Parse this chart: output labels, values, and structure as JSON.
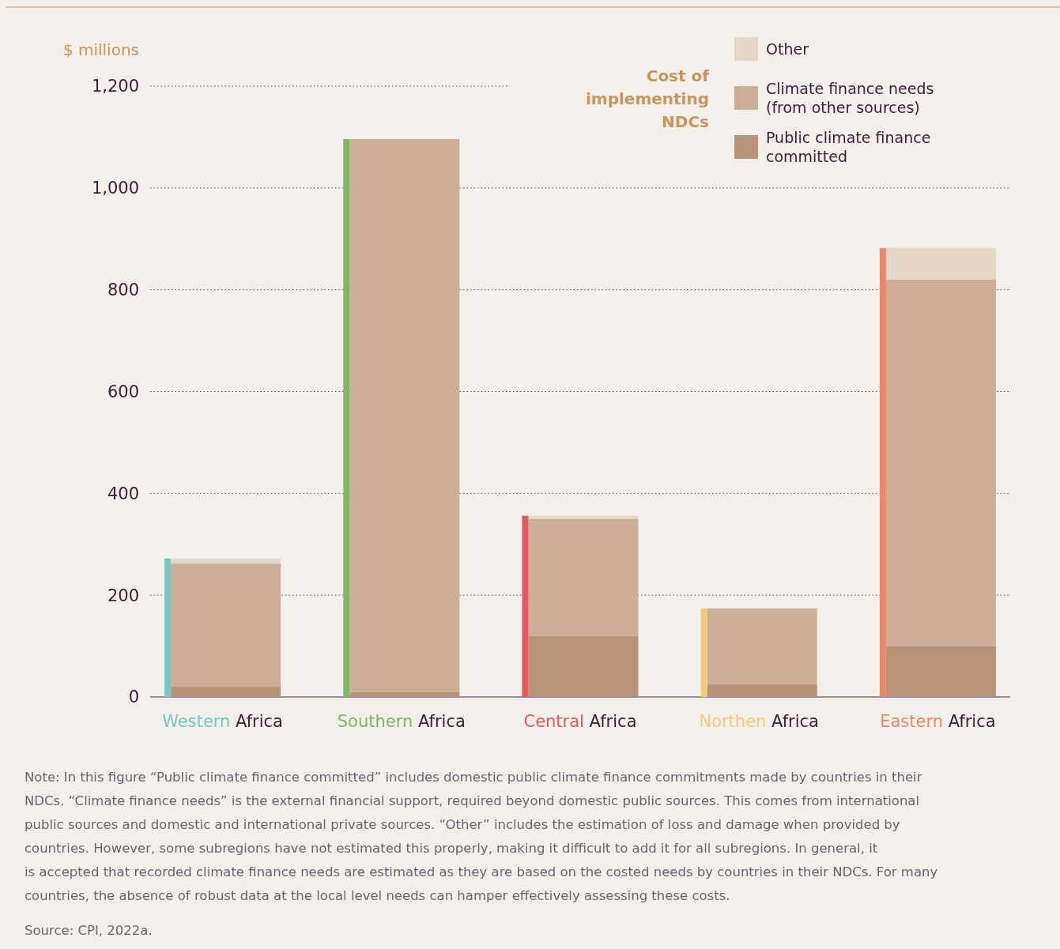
{
  "chart_data": [
    {
      "type": "bar",
      "stacked": true,
      "categories": [
        "Western Africa",
        "Southern Africa",
        "Central Africa",
        "Northen Africa",
        "Eastern Africa"
      ],
      "series": [
        {
          "name": "Public climate finance committed",
          "color": "#b79377",
          "values": [
            20,
            10,
            120,
            25,
            100
          ]
        },
        {
          "name": "Climate finance needs (from other sources)",
          "color": "#cdae99",
          "values": [
            242,
            1086,
            230,
            149,
            720
          ]
        },
        {
          "name": "Other",
          "color": "#e4d7c8",
          "values": [
            10,
            0,
            6,
            0,
            62
          ]
        }
      ],
      "ylabel": "$ millions",
      "legend_title": "Cost of implementing NDCs",
      "ylim": [
        0,
        1200
      ],
      "yticks": [
        0,
        200,
        400,
        600,
        800,
        {
          "value": 1000,
          "label": "1,000"
        },
        {
          "value": 1200,
          "label": "1,200"
        }
      ],
      "grid": "y",
      "legend": "top right",
      "annotations": [
        "Note: In this figure “Public climate finance committed” includes domestic public climate finance commitments made by countries in their NDCs. “Climate finance needs” is the external financial support, required beyond domestic public sources. This comes from international public sources and domestic and international private sources. “Other” includes the estimation of loss and damage when provided by countries. However, some subregions have not estimated this properly, making it difficult to add it for all subregions. In general, it is accepted that recorded climate finance needs are estimated as they are based on the costed needs by countries in their NDCs. For many countries, the absence of robust data at the local level needs can hamper effectively assessing these costs.",
        "Source: CPI, 2022a."
      ]
    },
    {
      "type": "bar",
      "categories": [
        null,
        null,
        null,
        null,
        null
      ],
      "values": [
        272,
        1096,
        356,
        174,
        882
      ],
      "colors": [
        "#76c6c8",
        "#82b665",
        "#e05a60",
        "#efcd78",
        "#ea8869"
      ],
      "ylim": [
        0,
        1200
      ]
    }
  ]
}
